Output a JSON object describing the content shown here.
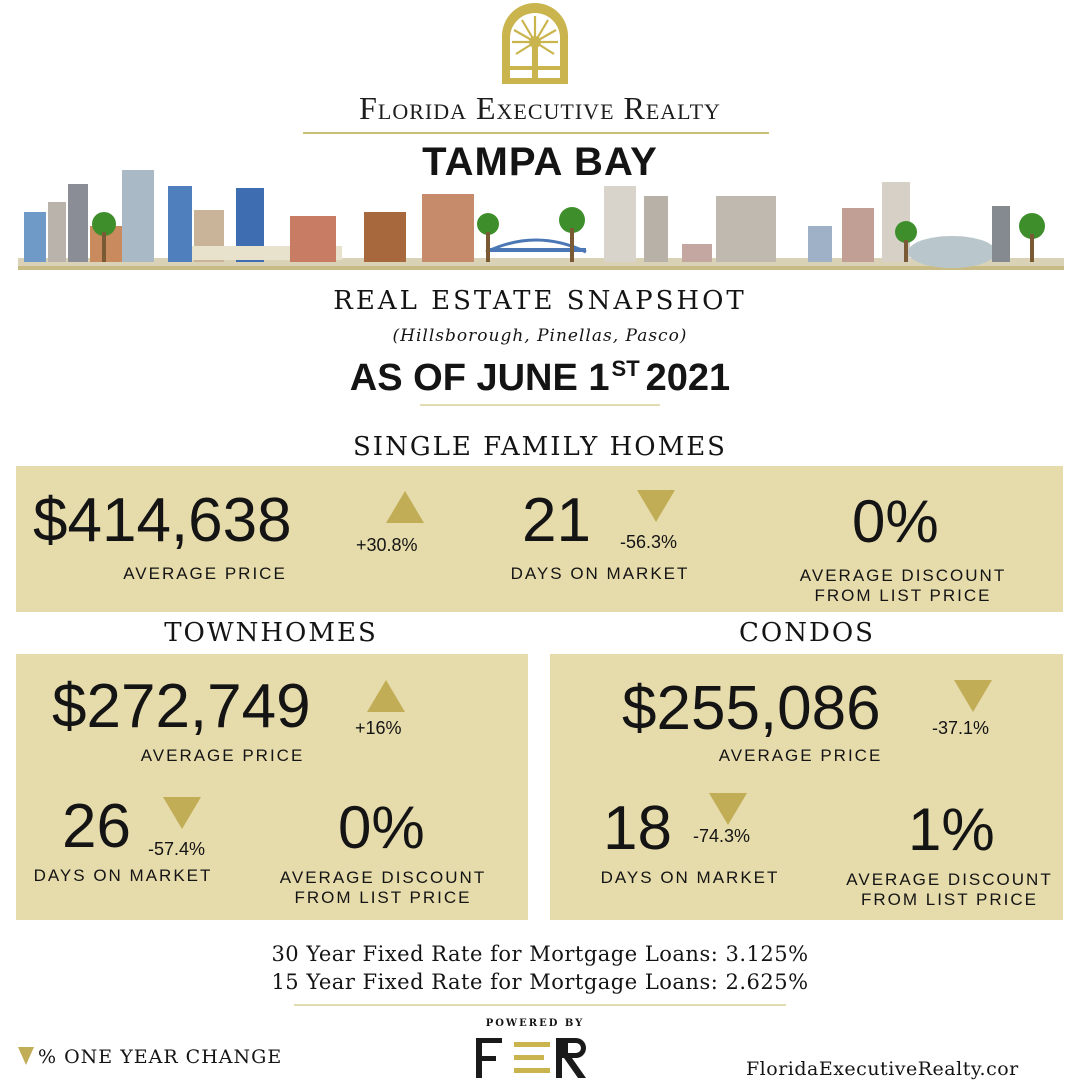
{
  "header": {
    "brand": "Florida Executive Realty",
    "city": "TAMPA BAY"
  },
  "snapshot": {
    "title": "REAL ESTATE SNAPSHOT",
    "subtitle": "(Hillsborough, Pinellas, Pasco)",
    "as_of_prefix": "AS OF JUNE 1",
    "as_of_suffix": "ST",
    "as_of_year": "2021"
  },
  "single_family": {
    "title": "SINGLE FAMILY HOMES",
    "price": "$414,638",
    "price_change": "+30.8%",
    "price_direction": "up",
    "price_label": "AVERAGE PRICE",
    "days": "21",
    "days_change": "-56.3%",
    "days_direction": "down",
    "days_label": "DAYS ON MARKET",
    "discount": "0%",
    "discount_label_1": "AVERAGE DISCOUNT",
    "discount_label_2": "FROM LIST PRICE"
  },
  "townhomes": {
    "title": "TOWNHOMES",
    "price": "$272,749",
    "price_change": "+16%",
    "price_direction": "up",
    "price_label": "AVERAGE PRICE",
    "days": "26",
    "days_change": "-57.4%",
    "days_direction": "down",
    "days_label": "DAYS ON MARKET",
    "discount": "0%",
    "discount_label_1": "AVERAGE DISCOUNT",
    "discount_label_2": "FROM LIST PRICE"
  },
  "condos": {
    "title": "CONDOS",
    "price": "$255,086",
    "price_change": "-37.1%",
    "price_direction": "down",
    "price_label": "AVERAGE PRICE",
    "days": "18",
    "days_change": "-74.3%",
    "days_direction": "down",
    "days_label": "DAYS ON MARKET",
    "discount": "1%",
    "discount_label_1": "AVERAGE DISCOUNT",
    "discount_label_2": "FROM LIST PRICE"
  },
  "rates": {
    "line_30": "30 Year Fixed Rate for Mortgage Loans: 3.125%",
    "line_15": "15 Year Fixed Rate for Mortgage Loans: 2.625%"
  },
  "footer": {
    "legend": "% ONE YEAR CHANGE",
    "powered_by": "POWERED BY",
    "logo_text": "FER",
    "website": "FloridaExecutiveRealty.cor"
  },
  "colors": {
    "panel": "#e6dbab",
    "gold": "#c1ad55",
    "text": "#141414"
  }
}
